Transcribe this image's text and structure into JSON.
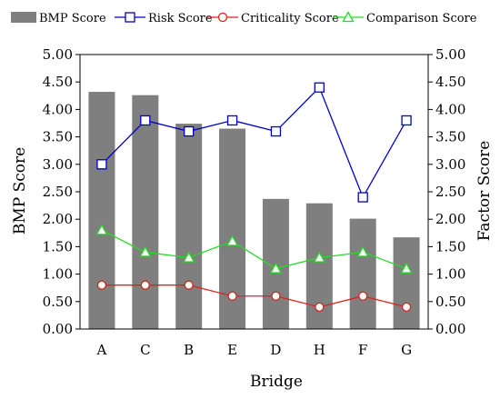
{
  "chart_data": {
    "type": "bar",
    "categories": [
      "A",
      "C",
      "B",
      "E",
      "D",
      "H",
      "F",
      "G"
    ],
    "xlabel": "Bridge",
    "ylabel_left": "BMP Score",
    "ylabel_right": "Factor Score",
    "ylim": [
      0,
      5
    ],
    "yticks": [
      "0.00",
      "0.50",
      "1.00",
      "1.50",
      "2.00",
      "2.50",
      "3.00",
      "3.50",
      "4.00",
      "4.50",
      "5.00"
    ],
    "grid": false,
    "legend_position": "top",
    "bars": {
      "name": "BMP Score",
      "color": "#7f7f7f",
      "values": [
        4.32,
        4.26,
        3.74,
        3.65,
        2.37,
        2.29,
        2.01,
        1.67
      ]
    },
    "series": [
      {
        "name": "Risk Score",
        "color": "#0000cc",
        "marker": "square",
        "axis": "right",
        "values": [
          3.0,
          3.8,
          3.6,
          3.8,
          3.6,
          4.4,
          2.4,
          3.8
        ]
      },
      {
        "name": "Criticality Score",
        "color": "#e0201b",
        "marker": "circle",
        "axis": "right",
        "values": [
          0.8,
          0.8,
          0.8,
          0.6,
          0.6,
          0.4,
          0.6,
          0.4
        ]
      },
      {
        "name": "Comparison Score",
        "color": "#22dd22",
        "marker": "triangle",
        "axis": "right",
        "values": [
          1.8,
          1.4,
          1.3,
          1.6,
          1.1,
          1.3,
          1.4,
          1.1
        ]
      }
    ]
  }
}
